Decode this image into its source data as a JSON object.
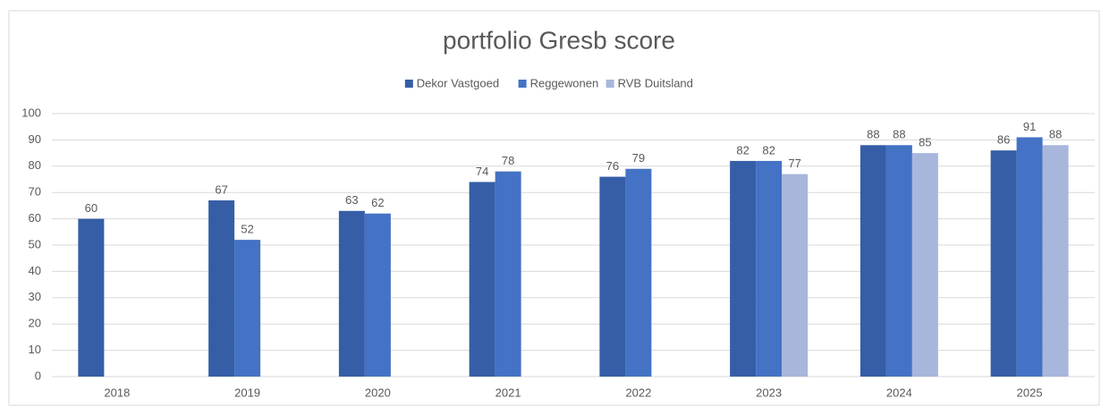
{
  "chart_data": {
    "type": "bar",
    "title": "portfolio Gresb score",
    "categories": [
      "2018",
      "2019",
      "2020",
      "2021",
      "2022",
      "2023",
      "2024",
      "2025"
    ],
    "series": [
      {
        "name": "Dekor Vastgoed",
        "color": "#355ea6",
        "values": [
          60,
          67,
          63,
          74,
          76,
          82,
          88,
          86
        ]
      },
      {
        "name": "Reggewonen",
        "color": "#4472c4",
        "values": [
          null,
          52,
          62,
          78,
          79,
          82,
          88,
          91
        ]
      },
      {
        "name": "RVB Duitsland",
        "color": "#a9b6dc",
        "values": [
          null,
          null,
          null,
          null,
          null,
          77,
          85,
          88
        ]
      }
    ],
    "ylim": [
      0,
      100
    ],
    "yticks": [
      0,
      10,
      20,
      30,
      40,
      50,
      60,
      70,
      80,
      90,
      100
    ],
    "grid": true,
    "legend": "top"
  }
}
